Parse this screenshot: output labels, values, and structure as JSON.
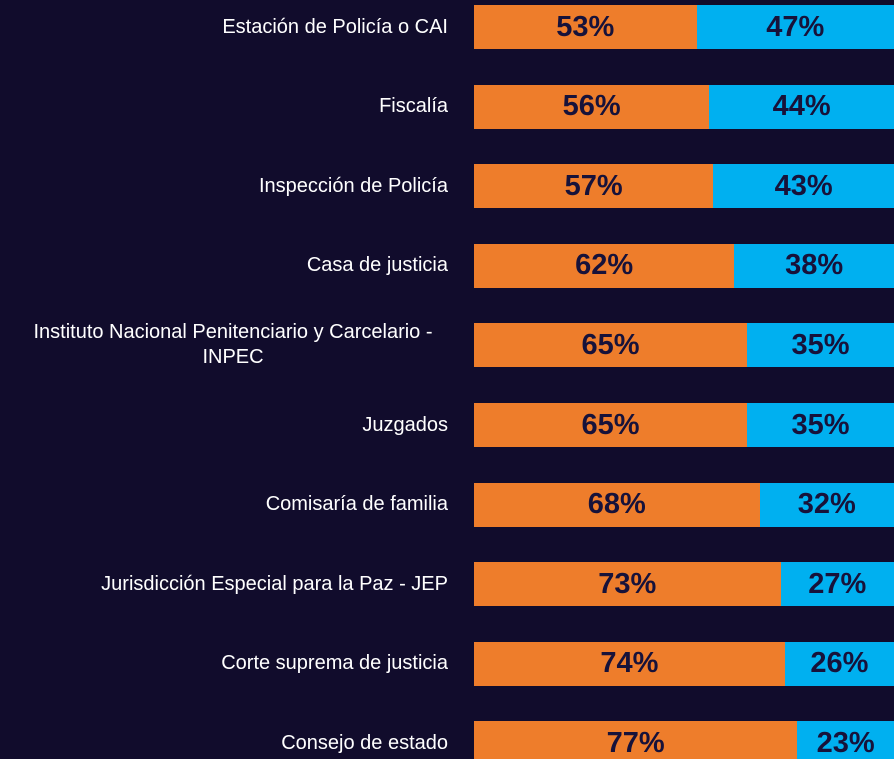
{
  "chart_data": {
    "type": "stacked-bar-100",
    "categories": [
      "Estación de Policía o CAI",
      "Fiscalía",
      "Inspección de Policía",
      "Casa de justicia",
      "Instituto Nacional Penitenciario y Carcelario - INPEC",
      "Juzgados",
      "Comisaría de familia",
      "Jurisdicción Especial para la Paz - JEP",
      "Corte suprema de justicia",
      "Consejo de estado"
    ],
    "series": [
      {
        "color": "#ee7d2b",
        "values": [
          53,
          56,
          57,
          62,
          65,
          65,
          68,
          73,
          74,
          77
        ],
        "value_labels": [
          "53%",
          "56%",
          "57%",
          "62%",
          "65%",
          "65%",
          "68%",
          "73%",
          "74%",
          "77%"
        ]
      },
      {
        "color": "#00b0f0",
        "values": [
          47,
          44,
          43,
          38,
          35,
          35,
          32,
          27,
          26,
          23
        ],
        "value_labels": [
          "47%",
          "44%",
          "43%",
          "38%",
          "35%",
          "35%",
          "32%",
          "27%",
          "26%",
          "23%"
        ]
      }
    ]
  }
}
